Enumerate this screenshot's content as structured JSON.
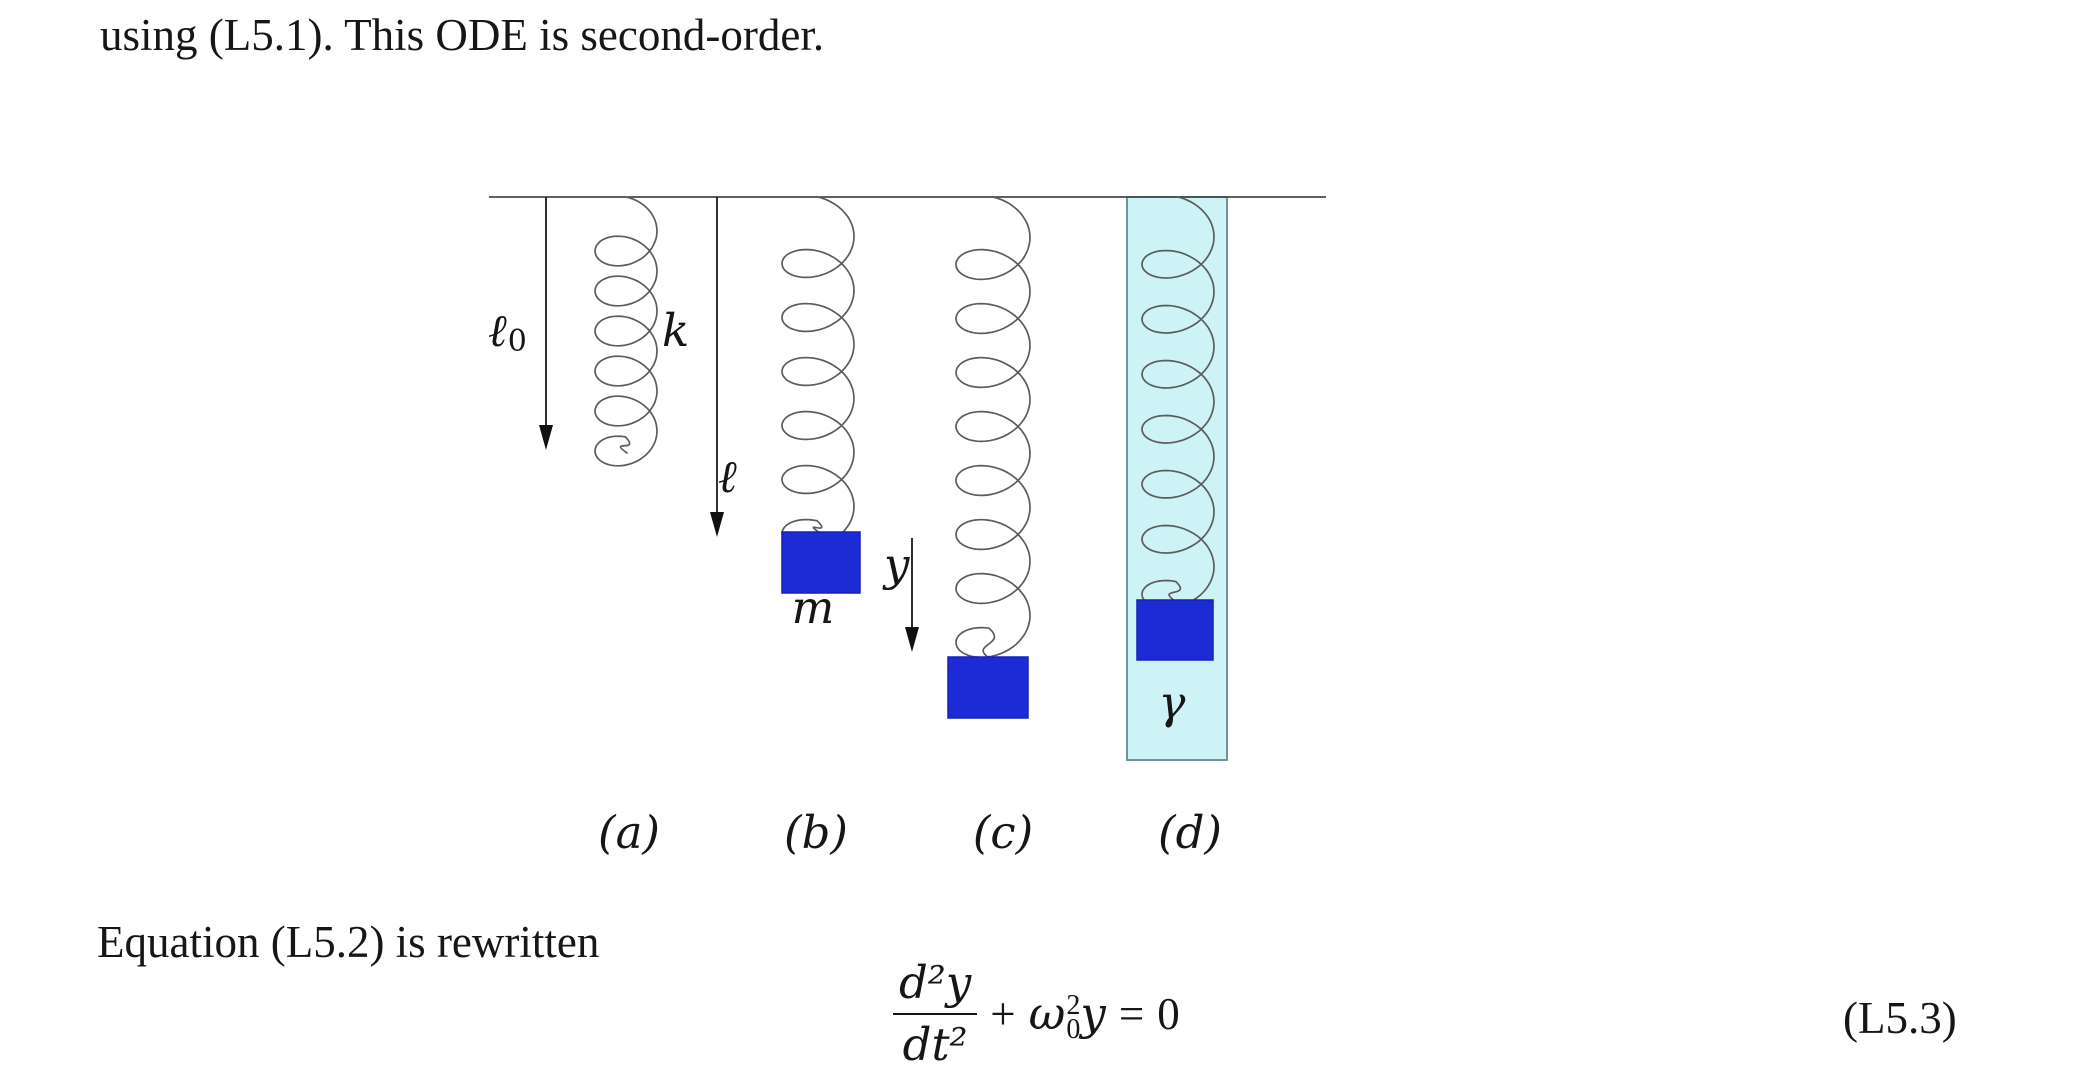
{
  "paragraphs": {
    "top": "using (L5.1). This ODE is second-order.",
    "bottom": "Equation (L5.2) is rewritten"
  },
  "figure": {
    "labels": {
      "l0_main": "ℓ",
      "l0_sub": "0",
      "k": "k",
      "l": "ℓ",
      "m": "m",
      "y": "y",
      "gamma": "γ",
      "a": "(a)",
      "b": "(b)",
      "c": "(c)",
      "d": "(d)"
    },
    "colors": {
      "mass_blue": "#1c2bd3",
      "fluid_cyan": "#cdf3f6"
    }
  },
  "equation": {
    "numerator": "d²y",
    "denominator": "dt²",
    "operator": "+",
    "omega": "ω",
    "omega_sup": "2",
    "omega_sub": "0",
    "rhs_y": "y",
    "equals": "=",
    "zero": "0",
    "tag": "(L5.3)"
  }
}
